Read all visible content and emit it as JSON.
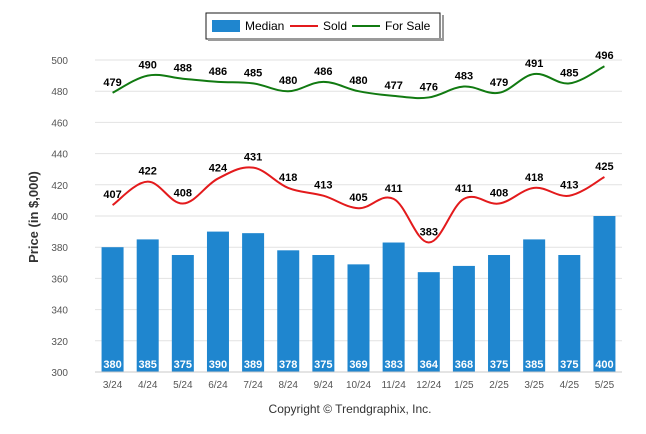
{
  "chart_data": {
    "type": "bar",
    "ylabel": "Price (in $,000)",
    "ylim": [
      300,
      500
    ],
    "yticks": [
      "500",
      "480",
      "460",
      "440",
      "420",
      "400",
      "380",
      "360",
      "340",
      "320",
      "300"
    ],
    "grid": true,
    "legend_position": "top-center",
    "categories": [
      "3/24",
      "4/24",
      "5/24",
      "6/24",
      "7/24",
      "8/24",
      "9/24",
      "10/24",
      "11/24",
      "12/24",
      "1/25",
      "2/25",
      "3/25",
      "4/25",
      "5/25"
    ],
    "series": [
      {
        "name": "Median",
        "type": "bar",
        "color": "#1f86cf",
        "values": [
          380,
          385,
          375,
          390,
          389,
          378,
          375,
          369,
          383,
          364,
          368,
          375,
          385,
          375,
          400
        ]
      },
      {
        "name": "Sold",
        "type": "line",
        "color": "#e31a1c",
        "values": [
          407,
          422,
          408,
          424,
          431,
          418,
          413,
          405,
          411,
          383,
          411,
          408,
          418,
          413,
          425
        ]
      },
      {
        "name": "For Sale",
        "type": "line",
        "color": "#117a11",
        "values": [
          479,
          490,
          488,
          486,
          485,
          480,
          486,
          480,
          477,
          476,
          483,
          479,
          491,
          485,
          496
        ]
      }
    ]
  },
  "footer": {
    "copyright": "Copyright © Trendgraphix, Inc."
  }
}
